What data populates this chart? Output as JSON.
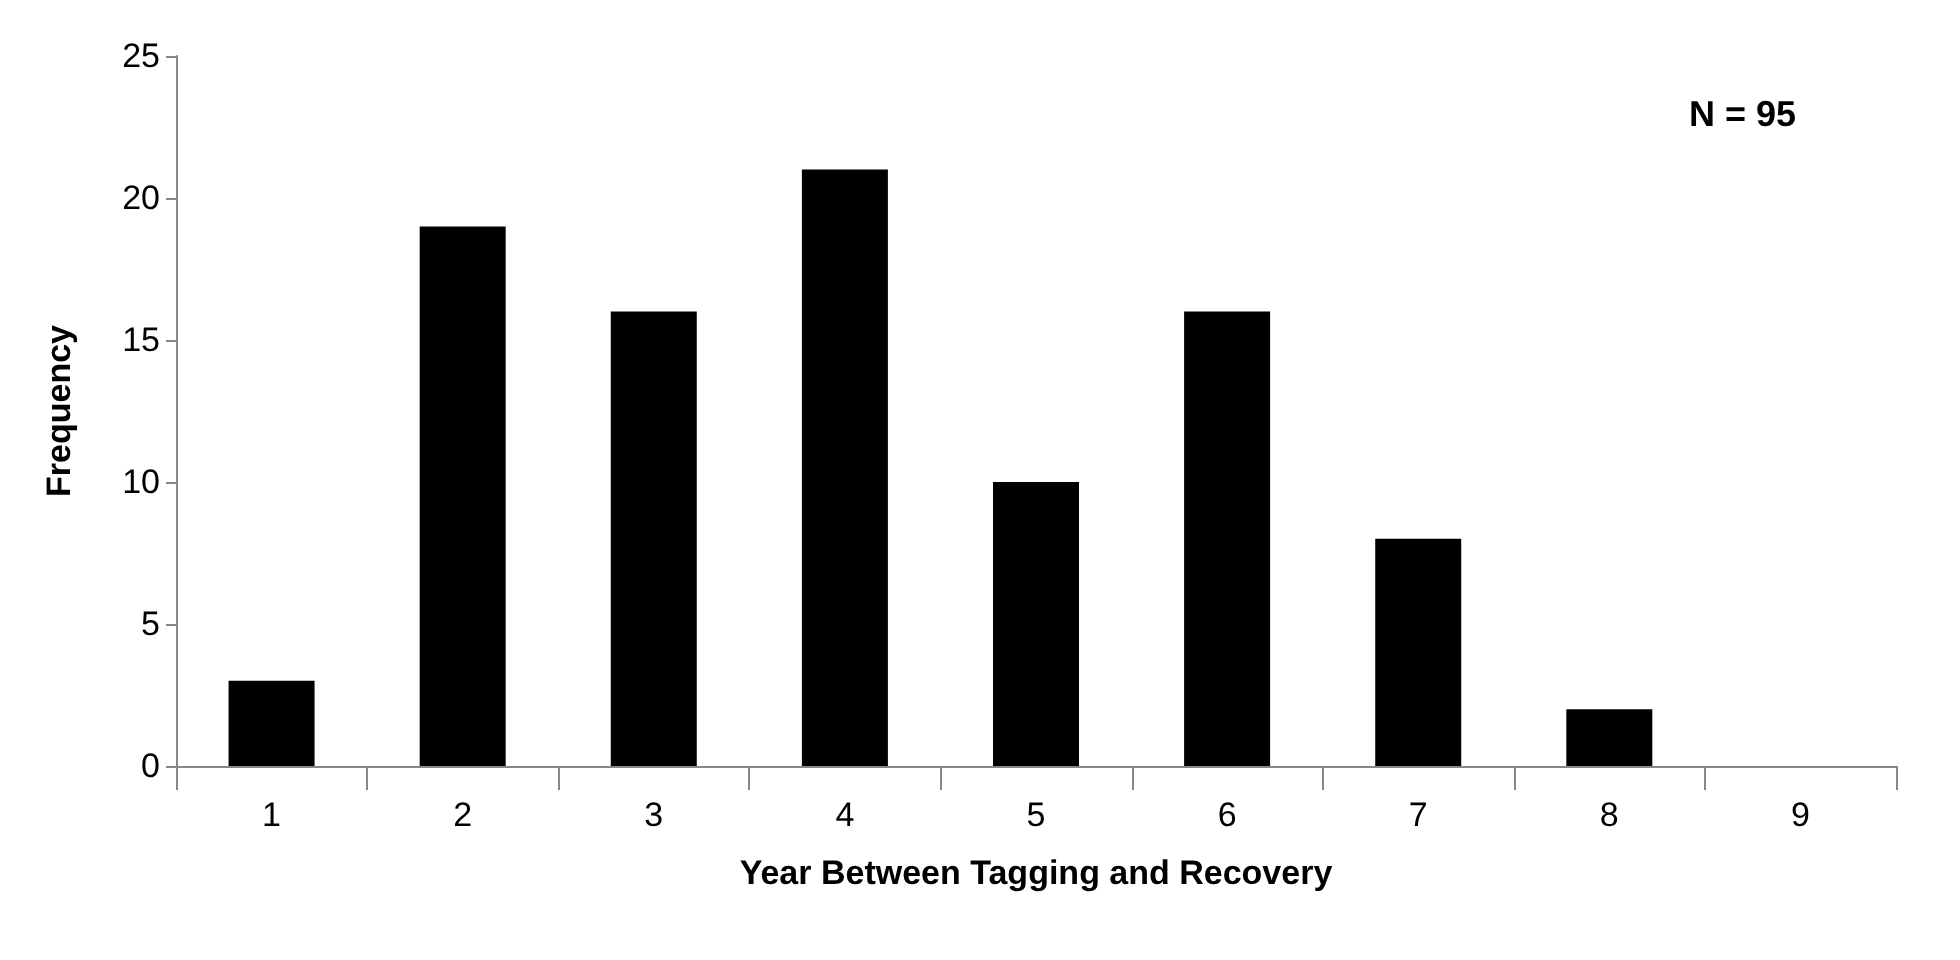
{
  "chart_data": {
    "type": "bar",
    "xlabel": "Year Between Tagging and Recovery",
    "ylabel": "Frequency",
    "categories": [
      "1",
      "2",
      "3",
      "4",
      "5",
      "6",
      "7",
      "8",
      "9"
    ],
    "values": [
      3,
      19,
      16,
      21,
      10,
      16,
      8,
      2,
      0
    ],
    "color": "#000000",
    "ylim": [
      0,
      25
    ],
    "yticks": [
      0,
      5,
      10,
      15,
      20,
      25
    ],
    "grid": false,
    "annotations": [
      "N = 95"
    ]
  }
}
